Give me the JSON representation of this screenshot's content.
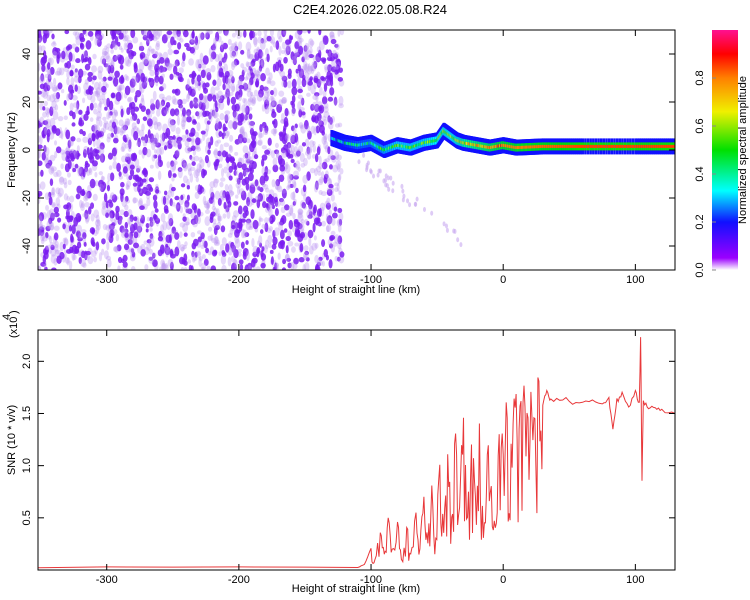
{
  "title": "C2E4.2026.022.05.08.R24",
  "chart_data": [
    {
      "type": "heatmap",
      "title": "C2E4.2026.022.05.08.R24",
      "xlabel": "Height of straight line (km)",
      "ylabel": "Frequency (Hz)",
      "xlim": [
        -352,
        130
      ],
      "ylim": [
        -50,
        50
      ],
      "xticks": [
        -300,
        -200,
        -100,
        0,
        100
      ],
      "xtick_labels": [
        "-300",
        "-200",
        "-100",
        "0",
        "100"
      ],
      "yticks": [
        -40,
        -20,
        0,
        20,
        40
      ],
      "ytick_labels": [
        "-40",
        "-20",
        "0",
        "20",
        "40"
      ],
      "noise_region_x": [
        -352,
        -130
      ],
      "ridge": {
        "x": [
          -130,
          -120,
          -110,
          -100,
          -90,
          -80,
          -70,
          -60,
          -50,
          -45,
          -40,
          -35,
          -30,
          -20,
          -10,
          0,
          10,
          30,
          60,
          100,
          130
        ],
        "freq": [
          5,
          3,
          2,
          3,
          0,
          2,
          1,
          3,
          4,
          8,
          6,
          4,
          3,
          2,
          1,
          2,
          1,
          1.5,
          1.5,
          1.5,
          1.5
        ],
        "amplitude": [
          0.3,
          0.35,
          0.4,
          0.4,
          0.45,
          0.5,
          0.5,
          0.5,
          0.55,
          0.6,
          0.55,
          0.6,
          0.65,
          0.7,
          0.75,
          0.8,
          0.8,
          0.82,
          0.85,
          0.85,
          0.85
        ]
      },
      "colorbar": {
        "label": "Normalized spectral amplitude",
        "range": [
          0,
          1
        ],
        "ticks": [
          0.0,
          0.2,
          0.4,
          0.6,
          0.8
        ],
        "tick_labels": [
          "0.0",
          "0.2",
          "0.4",
          "0.6",
          "0.8"
        ]
      }
    },
    {
      "type": "line",
      "xlabel": "Height of straight line (km)",
      "ylabel": "SNR (10 * v/v)",
      "y_multiplier": "(x10",
      "y_multiplier_exp": "4",
      "xlim": [
        -352,
        130
      ],
      "ylim": [
        0,
        2.3
      ],
      "xticks": [
        -300,
        -200,
        -100,
        0,
        100
      ],
      "xtick_labels": [
        "-300",
        "-200",
        "-100",
        "0",
        "100"
      ],
      "yticks": [
        0.5,
        1.0,
        1.5,
        2.0
      ],
      "ytick_labels": [
        "0.5",
        "1.0",
        "1.5",
        "2.0"
      ],
      "series": [
        {
          "name": "SNR",
          "color": "#e8383a",
          "x": [
            -352,
            -300,
            -250,
            -200,
            -150,
            -110,
            -105,
            -100,
            -97,
            -93,
            -90,
            -87,
            -84,
            -80,
            -77,
            -73,
            -70,
            -66,
            -63,
            -60,
            -57,
            -54,
            -51,
            -48,
            -45,
            -42,
            -39,
            -36,
            -33,
            -30,
            -27,
            -24,
            -21,
            -18,
            -15,
            -12,
            -9,
            -6,
            -3,
            0,
            3,
            6,
            9,
            12,
            15,
            18,
            21,
            24,
            27,
            30,
            33,
            36,
            45,
            55,
            65,
            75,
            80,
            83,
            86,
            90,
            95,
            100,
            103,
            104,
            105,
            106,
            110,
            115,
            120,
            130
          ],
          "y": [
            0.02,
            0.02,
            0.02,
            0.02,
            0.02,
            0.02,
            0.05,
            0.2,
            0.1,
            0.35,
            0.15,
            0.5,
            0.2,
            0.45,
            0.1,
            0.4,
            0.15,
            0.55,
            0.2,
            0.7,
            0.25,
            0.8,
            0.3,
            1.0,
            0.35,
            1.1,
            0.5,
            1.3,
            0.6,
            1.45,
            0.5,
            1.2,
            0.7,
            1.4,
            0.3,
            1.1,
            0.8,
            0.4,
            1.3,
            1.1,
            1.45,
            1.2,
            1.55,
            1.35,
            1.6,
            1.5,
            1.7,
            1.45,
            1.8,
            1.6,
            1.7,
            1.62,
            1.65,
            1.6,
            1.63,
            1.6,
            1.65,
            1.35,
            1.62,
            1.68,
            1.55,
            1.7,
            1.6,
            2.25,
            0.85,
            1.6,
            1.55,
            1.58,
            1.52,
            1.5
          ]
        }
      ]
    }
  ]
}
